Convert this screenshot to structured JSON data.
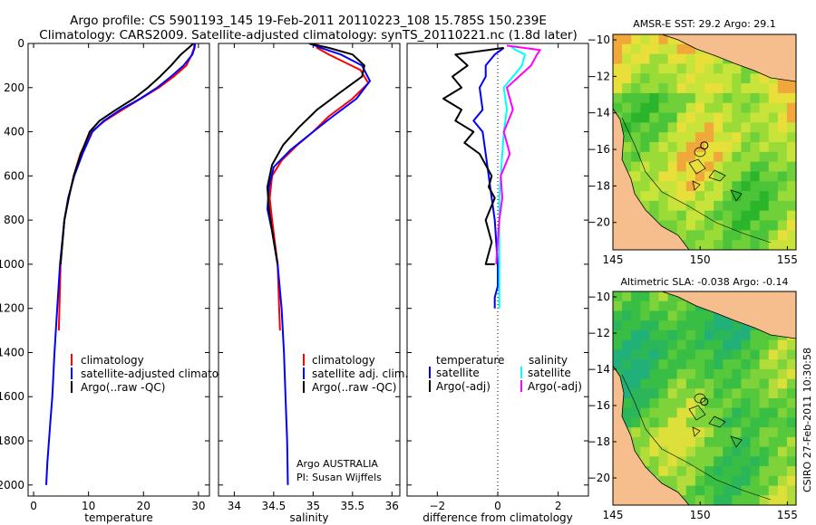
{
  "title": {
    "line1": "Argo profile: CS 5901193_145 19-Feb-2011 20110223_108 15.785S 150.239E",
    "line2": "Climatology: CARS2009. Satellite-adjusted climatology: synTS_20110221.nc (1.8d later)"
  },
  "credit": "CSIRO 27-Feb-2011 10:30:58",
  "chart_data": [
    {
      "type": "line",
      "id": "temperature",
      "xlabel": "temperature",
      "ylabel": "",
      "xlim": [
        -1,
        32
      ],
      "ylim": [
        2050,
        0
      ],
      "xticks": [
        0,
        10,
        20,
        30
      ],
      "yticks": [
        0,
        200,
        400,
        600,
        800,
        1000,
        1200,
        1400,
        1600,
        1800,
        2000
      ],
      "legend": {
        "position": "lower-right",
        "labels": [
          "climatology",
          "satellite-adjusted climatology",
          "Argo(..raw -QC)"
        ]
      },
      "series": [
        {
          "name": "climatology",
          "color": "#ff0000",
          "x": [
            29.3,
            29.2,
            28.8,
            27.8,
            25.5,
            22.8,
            19.5,
            16.2,
            13.0,
            10.5,
            8.5,
            7.3,
            6.4,
            5.6,
            4.9,
            4.6
          ],
          "y": [
            0,
            20,
            50,
            100,
            150,
            200,
            250,
            300,
            350,
            400,
            500,
            600,
            700,
            800,
            1000,
            1300
          ]
        },
        {
          "name": "satellite-adjusted climatology",
          "color": "#0000ff",
          "x": [
            29.4,
            29.3,
            28.9,
            27.3,
            25.0,
            22.5,
            19.4,
            15.8,
            12.8,
            10.7,
            8.9,
            7.4,
            6.3,
            5.6,
            4.8,
            4.3,
            3.8,
            3.4,
            3.1,
            2.8,
            2.5,
            2.3
          ],
          "y": [
            0,
            20,
            50,
            100,
            150,
            200,
            250,
            300,
            350,
            400,
            500,
            600,
            700,
            800,
            1000,
            1200,
            1400,
            1600,
            1700,
            1800,
            1900,
            2000
          ]
        },
        {
          "name": "Argo(..raw -QC)",
          "color": "#000000",
          "x": [
            29.1,
            28.2,
            26.8,
            25.0,
            23.0,
            20.8,
            18.2,
            15.0,
            12.0,
            10.2,
            8.6,
            7.3,
            6.4,
            5.6,
            4.9
          ],
          "y": [
            0,
            20,
            50,
            100,
            150,
            200,
            250,
            300,
            350,
            400,
            500,
            600,
            700,
            800,
            1000
          ]
        }
      ]
    },
    {
      "type": "line",
      "id": "salinity",
      "xlabel": "salinity",
      "ylabel": "",
      "xlim": [
        33.8,
        36.1
      ],
      "ylim": [
        2050,
        0
      ],
      "xticks": [
        34,
        34.5,
        35,
        35.5,
        36
      ],
      "xticklabels": [
        "34",
        "34.5",
        "35",
        "35.5",
        "36"
      ],
      "legend": {
        "position": "lower-right",
        "labels": [
          "climatology",
          "satellite adj. clim.",
          "Argo(..raw -QC)"
        ]
      },
      "annotations": [
        "Argo AUSTRALIA",
        "PI: Susan Wijffels"
      ],
      "series": [
        {
          "name": "climatology",
          "color": "#ff0000",
          "x": [
            35.05,
            35.05,
            35.2,
            35.6,
            35.7,
            35.5,
            35.2,
            35.0,
            34.8,
            34.6,
            34.48,
            34.45,
            34.48,
            34.55,
            34.58
          ],
          "y": [
            0,
            20,
            50,
            120,
            180,
            250,
            330,
            400,
            460,
            530,
            600,
            700,
            800,
            1000,
            1300
          ]
        },
        {
          "name": "satellite adj. clim.",
          "color": "#0000ff",
          "x": [
            34.95,
            35.1,
            35.35,
            35.62,
            35.72,
            35.55,
            35.25,
            35.0,
            34.72,
            34.5,
            34.44,
            34.42,
            34.48,
            34.55,
            34.6,
            34.63,
            34.65,
            34.67,
            34.68
          ],
          "y": [
            0,
            20,
            50,
            100,
            170,
            250,
            330,
            400,
            480,
            560,
            650,
            750,
            850,
            1000,
            1200,
            1400,
            1600,
            1800,
            2000
          ]
        },
        {
          "name": "Argo(..raw -QC)",
          "color": "#000000",
          "x": [
            34.95,
            35.2,
            35.5,
            35.65,
            35.62,
            35.35,
            35.05,
            34.82,
            34.62,
            34.48,
            34.42,
            34.44,
            34.48,
            34.55
          ],
          "y": [
            0,
            20,
            50,
            100,
            150,
            220,
            300,
            380,
            460,
            550,
            650,
            750,
            850,
            1000
          ]
        }
      ]
    },
    {
      "type": "line",
      "id": "difference",
      "xlabel": "difference from climatology",
      "ylabel": "",
      "xlim": [
        -3,
        3
      ],
      "ylim": [
        2050,
        0
      ],
      "xticks": [
        -2,
        0,
        2
      ],
      "xticklabels": [
        "−2",
        "0",
        "2"
      ],
      "legend": {
        "position": "lower-right",
        "headers": [
          "temperature",
          "salinity"
        ],
        "labels": [
          "satellite",
          "Argo(-adj)",
          "satellite",
          "Argo(-adj)"
        ]
      },
      "series": [
        {
          "name": "temperature satellite",
          "color": "#0000ff",
          "x": [
            0.2,
            -0.1,
            -0.4,
            -0.4,
            -0.6,
            -0.5,
            -0.8,
            -0.5,
            -0.4,
            -0.3,
            -0.2,
            -0.1,
            -0.05,
            0.0,
            0.0,
            -0.1,
            -0.1
          ],
          "y": [
            20,
            50,
            100,
            150,
            200,
            300,
            350,
            400,
            500,
            600,
            700,
            800,
            900,
            1000,
            1100,
            1150,
            1200
          ]
        },
        {
          "name": "temperature Argo(-adj)",
          "color": "#000000",
          "x": [
            0.2,
            -1.4,
            -1.0,
            -1.5,
            -1.2,
            -1.8,
            -1.2,
            -1.4,
            -0.8,
            -1.1,
            -0.6,
            -0.2,
            -0.3,
            -0.1,
            -0.4,
            -0.2,
            -0.4,
            -0.1
          ],
          "y": [
            20,
            50,
            100,
            150,
            200,
            250,
            300,
            350,
            400,
            450,
            500,
            600,
            650,
            700,
            800,
            900,
            1000,
            1000
          ]
        },
        {
          "name": "salinity satellite",
          "color": "#00ffff",
          "x": [
            0.4,
            0.6,
            0.9,
            0.8,
            0.5,
            0.2,
            0.3,
            0.2,
            0.15,
            0.1,
            0.05,
            0.05,
            0.05,
            0.05,
            0.05
          ],
          "y": [
            10,
            30,
            50,
            100,
            150,
            200,
            300,
            400,
            500,
            600,
            700,
            800,
            900,
            1000,
            1200
          ]
        },
        {
          "name": "salinity Argo(-adj)",
          "color": "#ff00ff",
          "x": [
            0.3,
            1.4,
            1.3,
            1.1,
            0.7,
            0.3,
            0.5,
            0.2,
            0.4,
            0.1,
            0.15,
            0.05,
            0.0,
            -0.05
          ],
          "y": [
            10,
            30,
            50,
            100,
            150,
            200,
            300,
            400,
            500,
            600,
            700,
            800,
            900,
            1000
          ]
        }
      ]
    },
    {
      "type": "heatmap",
      "id": "sst_map",
      "title": "AMSR-E SST: 29.2 Argo: 29.1",
      "xlim": [
        145,
        155.5
      ],
      "ylim": [
        -21.5,
        -9.7
      ],
      "xticks": [
        145,
        150,
        155
      ],
      "yticks": [
        -10,
        -12,
        -14,
        -16,
        -18,
        -20
      ],
      "yticklabels": [
        "−10",
        "−12",
        "−14",
        "−16",
        "−18",
        "−20"
      ],
      "profile_location": [
        150.239,
        -15.785
      ]
    },
    {
      "type": "heatmap",
      "id": "sla_map",
      "title": "Altimetric SLA: -0.038 Argo: -0.14",
      "xlim": [
        145,
        155.5
      ],
      "ylim": [
        -21.5,
        -9.7
      ],
      "xticks": [
        145,
        150,
        155
      ],
      "yticks": [
        -10,
        -12,
        -14,
        -16,
        -18,
        -20
      ],
      "yticklabels": [
        "−10",
        "−12",
        "−14",
        "−16",
        "−18",
        "−20"
      ],
      "profile_location": [
        150.239,
        -15.785
      ]
    }
  ]
}
